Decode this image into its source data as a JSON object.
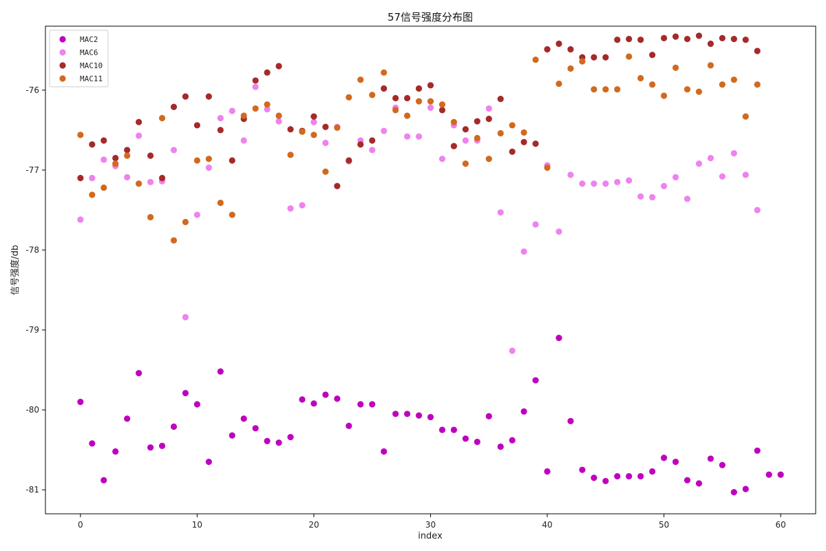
{
  "chart_data": {
    "type": "scatter",
    "title": "57信号强度分布图",
    "xlabel": "index",
    "ylabel": "信号强度/db",
    "xlim": [
      -3,
      63
    ],
    "ylim": [
      -81.3,
      -75.2
    ],
    "xticks": [
      0,
      10,
      20,
      30,
      40,
      50,
      60
    ],
    "yticks": [
      -81,
      -80,
      -79,
      -78,
      -77,
      -76
    ],
    "grid": false,
    "legend_position": "top-left",
    "series": [
      {
        "name": "MAC2",
        "color": "#bf00bf",
        "x": [
          0,
          1,
          2,
          3,
          4,
          5,
          6,
          7,
          8,
          9,
          10,
          11,
          12,
          13,
          14,
          15,
          16,
          17,
          18,
          19,
          20,
          21,
          22,
          23,
          24,
          25,
          26,
          27,
          28,
          29,
          30,
          31,
          32,
          33,
          34,
          35,
          36,
          37,
          38,
          39,
          40,
          41,
          42,
          43,
          44,
          45,
          46,
          47,
          48,
          49,
          50,
          51,
          52,
          53,
          54,
          55,
          56,
          57,
          58,
          59,
          60
        ],
        "y": [
          -79.9,
          -80.42,
          -80.88,
          -80.52,
          -80.11,
          -79.54,
          -80.47,
          -80.45,
          -80.21,
          -79.79,
          -79.93,
          -80.65,
          -79.52,
          -80.32,
          -80.11,
          -80.23,
          -80.39,
          -80.41,
          -80.34,
          -79.87,
          -79.92,
          -79.81,
          -79.86,
          -80.2,
          -79.93,
          -79.93,
          -80.52,
          -80.05,
          -80.05,
          -80.07,
          -80.09,
          -80.25,
          -80.25,
          -80.36,
          -80.4,
          -80.08,
          -80.46,
          -80.38,
          -80.02,
          -79.63,
          -80.77,
          -79.1,
          -80.14,
          -80.75,
          -80.85,
          -80.89,
          -80.83,
          -80.83,
          -80.83,
          -80.77,
          -80.6,
          -80.65,
          -80.88,
          -80.92,
          -80.61,
          -80.69,
          -81.03,
          -80.99,
          -80.51,
          -80.81,
          -80.81
        ]
      },
      {
        "name": "MAC6",
        "color": "#ee82ee",
        "x": [
          0,
          1,
          2,
          3,
          4,
          5,
          6,
          7,
          8,
          9,
          10,
          11,
          12,
          13,
          14,
          15,
          16,
          17,
          18,
          19,
          20,
          21,
          22,
          23,
          24,
          25,
          26,
          27,
          28,
          29,
          30,
          31,
          32,
          33,
          34,
          35,
          36,
          37,
          38,
          39,
          40,
          41,
          42,
          43,
          44,
          45,
          46,
          47,
          48,
          49,
          50,
          51,
          52,
          53,
          54,
          55,
          56,
          57,
          58
        ],
        "y": [
          -77.62,
          -77.1,
          -76.87,
          -76.95,
          -77.09,
          -76.57,
          -77.15,
          -77.14,
          -76.75,
          -78.84,
          -77.56,
          -76.97,
          -76.35,
          -76.26,
          -76.63,
          -75.96,
          -76.24,
          -76.39,
          -77.48,
          -77.44,
          -76.4,
          -76.66,
          -76.46,
          -76.89,
          -76.63,
          -76.75,
          -76.51,
          -76.22,
          -76.58,
          -76.58,
          -76.22,
          -76.86,
          -76.44,
          -76.63,
          -76.63,
          -76.23,
          -77.53,
          -79.26,
          -78.02,
          -77.68,
          -76.94,
          -77.77,
          -77.06,
          -77.17,
          -77.17,
          -77.17,
          -77.15,
          -77.13,
          -77.33,
          -77.34,
          -77.2,
          -77.09,
          -77.36,
          -76.92,
          -76.85,
          -77.08,
          -76.79,
          -77.06,
          -77.5
        ]
      },
      {
        "name": "MAC10",
        "color": "#a52a2a",
        "x": [
          0,
          1,
          2,
          3,
          4,
          5,
          6,
          7,
          8,
          9,
          10,
          11,
          12,
          13,
          14,
          15,
          16,
          17,
          18,
          19,
          20,
          21,
          22,
          23,
          24,
          25,
          26,
          27,
          28,
          29,
          30,
          31,
          32,
          33,
          34,
          35,
          36,
          37,
          38,
          39,
          40,
          41,
          42,
          43,
          44,
          45,
          46,
          47,
          48,
          49,
          50,
          51,
          52,
          53,
          54,
          55,
          56,
          57,
          58
        ],
        "y": [
          -77.1,
          -76.68,
          -76.63,
          -76.85,
          -76.75,
          -76.4,
          -76.82,
          -77.1,
          -76.21,
          -76.08,
          -76.44,
          -76.08,
          -76.5,
          -76.88,
          -76.36,
          -75.88,
          -75.78,
          -75.7,
          -76.49,
          -76.51,
          -76.33,
          -76.46,
          -77.2,
          -76.88,
          -76.68,
          -76.63,
          -75.98,
          -76.1,
          -76.1,
          -75.98,
          -75.94,
          -76.25,
          -76.7,
          -76.49,
          -76.39,
          -76.36,
          -76.11,
          -76.77,
          -76.65,
          -76.67,
          -75.49,
          -75.42,
          -75.49,
          -75.59,
          -75.59,
          -75.59,
          -75.37,
          -75.36,
          -75.37,
          -75.56,
          -75.35,
          -75.33,
          -75.36,
          -75.32,
          -75.42,
          -75.35,
          -75.36,
          -75.37,
          -75.51
        ]
      },
      {
        "name": "MAC11",
        "color": "#d2691e",
        "x": [
          0,
          1,
          2,
          3,
          4,
          5,
          6,
          7,
          8,
          9,
          10,
          11,
          12,
          13,
          14,
          15,
          16,
          17,
          18,
          19,
          20,
          21,
          22,
          23,
          24,
          25,
          26,
          27,
          28,
          29,
          30,
          31,
          32,
          33,
          34,
          35,
          36,
          37,
          38,
          39,
          40,
          41,
          42,
          43,
          44,
          45,
          46,
          47,
          48,
          49,
          50,
          51,
          52,
          53,
          54,
          55,
          56,
          57,
          58
        ],
        "y": [
          -76.56,
          -77.31,
          -77.22,
          -76.92,
          -76.82,
          -77.17,
          -77.59,
          -76.35,
          -77.88,
          -77.65,
          -76.88,
          -76.86,
          -77.41,
          -77.56,
          -76.32,
          -76.23,
          -76.18,
          -76.32,
          -76.81,
          -76.52,
          -76.56,
          -77.02,
          -76.47,
          -76.09,
          -75.87,
          -76.06,
          -75.78,
          -76.25,
          -76.32,
          -76.14,
          -76.14,
          -76.18,
          -76.4,
          -76.92,
          -76.6,
          -76.86,
          -76.54,
          -76.44,
          -76.53,
          -75.62,
          -76.97,
          -75.92,
          -75.73,
          -75.64,
          -75.99,
          -75.99,
          -75.99,
          -75.58,
          -75.85,
          -75.93,
          -76.07,
          -75.72,
          -75.99,
          -76.02,
          -75.69,
          -75.93,
          -75.87,
          -76.33,
          -75.93
        ]
      }
    ]
  }
}
